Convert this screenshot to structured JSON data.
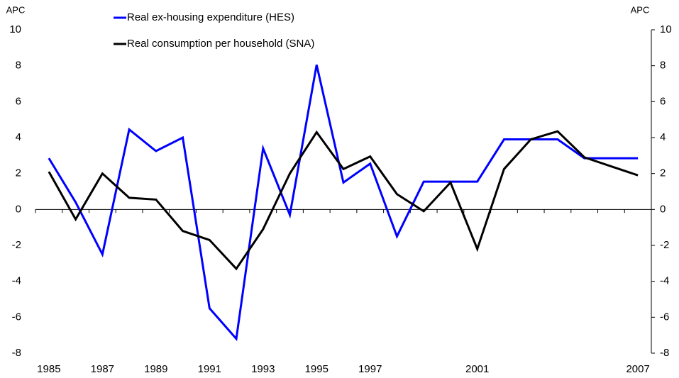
{
  "chart_data": {
    "type": "line",
    "y_label": "APC",
    "y2_label": "APC",
    "categories": [
      "1985",
      null,
      "1987",
      null,
      "1989",
      null,
      "1991",
      null,
      "1993",
      null,
      "1995",
      null,
      "1997",
      null,
      null,
      null,
      "2001",
      null,
      null,
      null,
      null,
      null,
      "2007"
    ],
    "series": [
      {
        "name": "Real ex-housing expenditure (HES)",
        "color": "#0000ff",
        "values": [
          2.85,
          0.4,
          -2.5,
          4.45,
          3.25,
          4.0,
          -5.5,
          -7.2,
          3.4,
          -0.3,
          8.05,
          1.5,
          2.55,
          -1.5,
          1.55,
          1.55,
          1.55,
          3.9,
          3.9,
          3.9,
          2.85,
          2.85,
          2.85
        ]
      },
      {
        "name": "Real consumption per household (SNA)",
        "color": "#000000",
        "values": [
          2.1,
          -0.55,
          2.0,
          0.65,
          0.55,
          -1.2,
          -1.7,
          -3.3,
          -1.1,
          2.0,
          4.3,
          2.25,
          2.95,
          0.85,
          -0.1,
          1.5,
          -2.2,
          2.25,
          3.9,
          4.35,
          2.9,
          2.4,
          1.9
        ]
      }
    ],
    "ylim": [
      -8,
      10
    ],
    "yticks": [
      -8,
      -6,
      -4,
      -2,
      0,
      2,
      4,
      6,
      8,
      10
    ],
    "y2lim": [
      -8,
      10
    ],
    "y2ticks": [
      -8,
      -6,
      -4,
      -2,
      0,
      2,
      4,
      6,
      8,
      10
    ],
    "legend": "upper left",
    "grid": false
  }
}
